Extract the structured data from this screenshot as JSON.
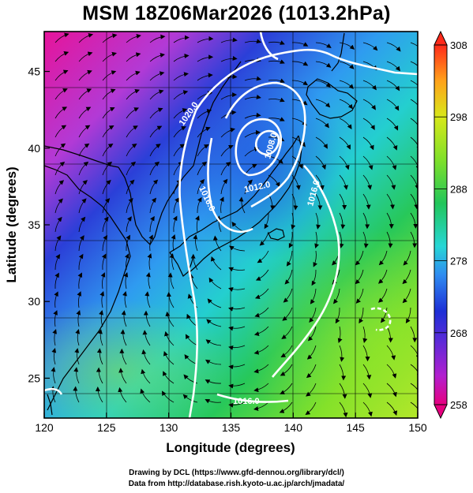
{
  "title": "MSM 18Z06Mar2026 (1013.2hPa)",
  "x_axis": {
    "label": "Longitude (degrees)",
    "ticks": [
      "120",
      "125",
      "130",
      "135",
      "140",
      "145",
      "150"
    ],
    "range": [
      120,
      150
    ]
  },
  "y_axis": {
    "label": "Latitude  (degrees)",
    "ticks": [
      "25",
      "30",
      "35",
      "40",
      "45"
    ],
    "range": [
      22.4,
      47.6
    ]
  },
  "colorbar": {
    "ticks": [
      "258",
      "268",
      "278",
      "288",
      "298",
      "308"
    ],
    "range": [
      258,
      308
    ],
    "colors": [
      "#e6007f",
      "#7b2fd1",
      "#1d2fd6",
      "#2f8bf0",
      "#27d6d6",
      "#22c65a",
      "#7fe02a",
      "#d8e81a",
      "#ffa21a",
      "#ff2a1a"
    ]
  },
  "contour_labels": [
    "1020.0",
    "1016.0",
    "1012.0",
    "1008.0",
    "1016.0",
    "1016.0"
  ],
  "credits": {
    "line1": "Drawing by DCL (https://www.gfd-dennou.org/library/dcl/)",
    "line2": "Data from http://database.rish.kyoto-u.ac.jp/arch/jmadata/"
  }
}
